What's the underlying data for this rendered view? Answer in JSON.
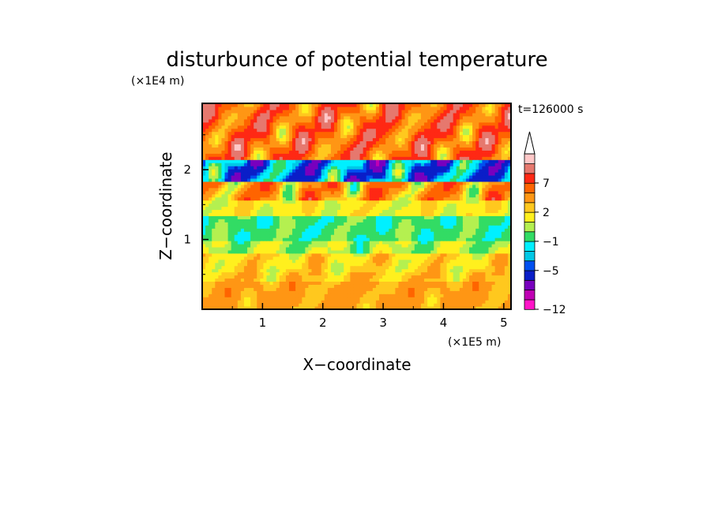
{
  "chart_data": {
    "type": "heatmap",
    "title": "disturbunce of potential temperature",
    "time_label": "t=126000 s",
    "xlabel": "X−coordinate",
    "ylabel": "Z−coordinate",
    "x_unit": "(×1E5 m)",
    "y_unit": "(×1E4 m)",
    "xlim": [
      0,
      5.12
    ],
    "ylim": [
      0,
      2.95
    ],
    "x_ticks": [
      1,
      2,
      3,
      4,
      5
    ],
    "y_ticks": [
      1,
      2
    ],
    "x_tick_labels": [
      "1",
      "2",
      "3",
      "4",
      "5"
    ],
    "y_tick_labels": [
      "1",
      "2"
    ],
    "colorbar": {
      "levels": [
        -12,
        -11,
        -9,
        -7,
        -5,
        -4,
        -3,
        -1,
        0,
        1,
        2,
        3,
        5,
        7,
        9,
        11,
        13
      ],
      "tick_labels": [
        "−12",
        "−5",
        "−1",
        "2",
        "7"
      ],
      "tick_values": [
        -12,
        -5,
        -1,
        2,
        7
      ],
      "colors": [
        "#ff14c8",
        "#c000b4",
        "#7800be",
        "#0a1ec8",
        "#0050f0",
        "#00c8e6",
        "#00f0ff",
        "#32dc64",
        "#b4f050",
        "#fff01e",
        "#ffc81e",
        "#ff9614",
        "#ff6400",
        "#ff2814",
        "#e6786e",
        "#ffc8c8"
      ],
      "extend_max": true
    },
    "bands": [
      {
        "z_range": [
          0,
          0.4
        ],
        "value": 3.5
      },
      {
        "z_range": [
          0.4,
          0.55
        ],
        "value": 2.5
      },
      {
        "z_range": [
          0.55,
          0.8
        ],
        "value": 2
      },
      {
        "z_range": [
          0.8,
          1.0
        ],
        "value": 0.5
      },
      {
        "z_range": [
          1.0,
          1.35
        ],
        "value": -0.5
      },
      {
        "z_range": [
          1.35,
          1.55
        ],
        "value": 1.5
      },
      {
        "z_range": [
          1.55,
          1.85
        ],
        "value": 4
      },
      {
        "z_range": [
          1.85,
          2.15
        ],
        "value": -4
      },
      {
        "z_range": [
          2.15,
          2.95
        ],
        "value": 6
      }
    ]
  }
}
